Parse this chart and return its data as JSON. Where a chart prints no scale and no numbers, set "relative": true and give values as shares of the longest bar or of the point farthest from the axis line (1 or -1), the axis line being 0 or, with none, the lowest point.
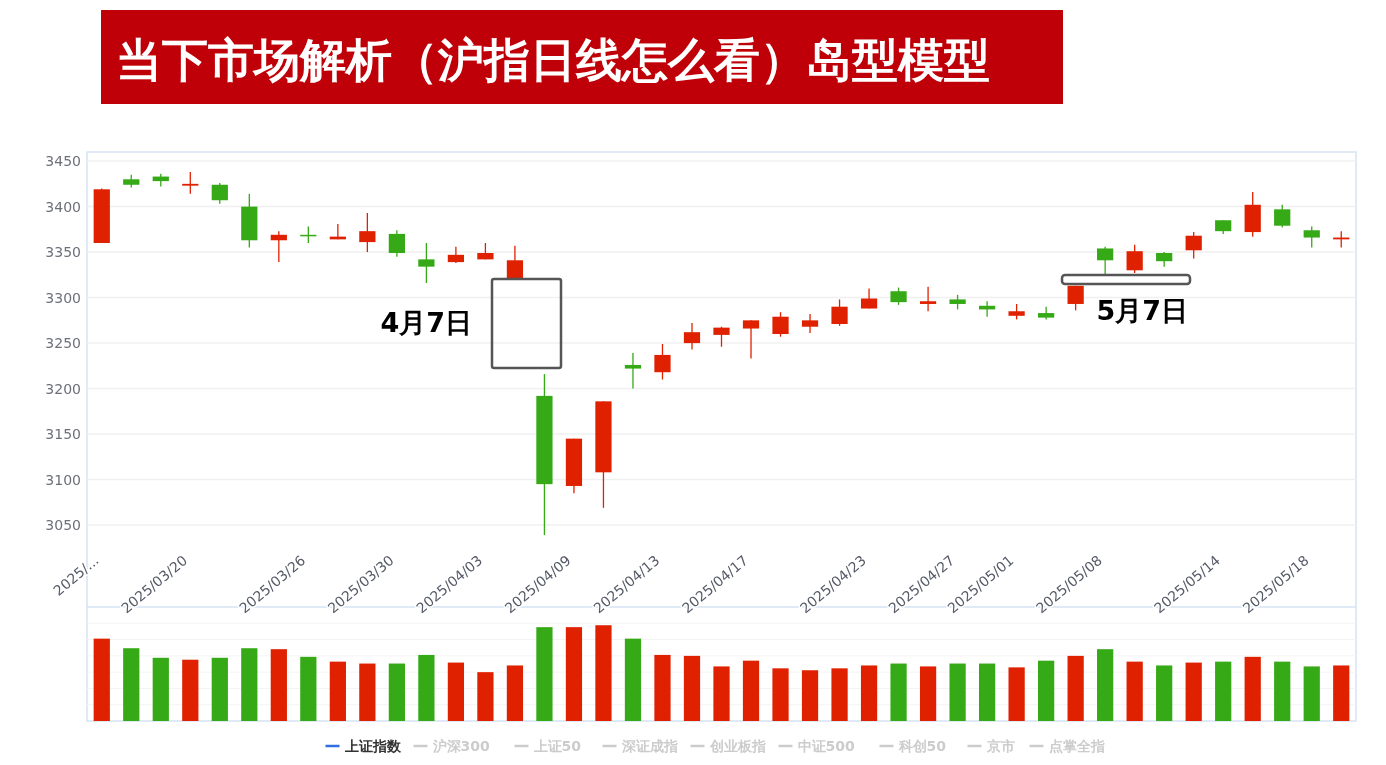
{
  "chart_data": [
    {
      "type": "candlestick",
      "title": "当下市场解析（沪指日线怎么看）岛型模型",
      "categories": [
        "2025/...",
        null,
        null,
        "2025/03/20",
        null,
        null,
        null,
        "2025/03/26",
        null,
        null,
        "2025/03/30",
        null,
        null,
        "2025/04/03",
        null,
        null,
        "2025/04/09",
        null,
        null,
        "2025/04/13",
        null,
        null,
        "2025/04/17",
        null,
        null,
        null,
        "2025/04/23",
        null,
        null,
        "2025/04/27",
        null,
        "2025/05/01",
        null,
        null,
        "2025/05/08",
        null,
        null,
        null,
        "2025/05/14",
        null,
        null,
        "2025/05/18",
        null
      ],
      "series": [
        {
          "name": "上证指数",
          "color": "#2f6fe0",
          "ohlc": [
            [
              3360,
              3420,
              3360,
              3419
            ],
            [
              3430,
              3435,
              3421,
              3424
            ],
            [
              3433,
              3436,
              3422,
              3428
            ],
            [
              3423,
              3438,
              3414,
              3425
            ],
            [
              3424,
              3426,
              3403,
              3407
            ],
            [
              3400,
              3414,
              3355,
              3363
            ],
            [
              3363,
              3373,
              3339,
              3369
            ],
            [
              3369,
              3378,
              3360,
              3368
            ],
            [
              3364,
              3381,
              3364,
              3367
            ],
            [
              3361,
              3393,
              3350,
              3373
            ],
            [
              3370,
              3374,
              3345,
              3349
            ],
            [
              3342,
              3360,
              3316,
              3334
            ],
            [
              3339,
              3356,
              3338,
              3347
            ],
            [
              3342,
              3360,
              3342,
              3349
            ],
            [
              3320,
              3357,
              3320,
              3341
            ],
            [
              3192,
              3216,
              3039,
              3095
            ],
            [
              3093,
              3145,
              3085,
              3145
            ],
            [
              3108,
              3186,
              3069,
              3186
            ],
            [
              3226,
              3239,
              3200,
              3222
            ],
            [
              3218,
              3249,
              3210,
              3237
            ],
            [
              3250,
              3272,
              3243,
              3262
            ],
            [
              3259,
              3268,
              3246,
              3267
            ],
            [
              3266,
              3275,
              3233,
              3275
            ],
            [
              3260,
              3284,
              3257,
              3279
            ],
            [
              3268,
              3282,
              3261,
              3275
            ],
            [
              3271,
              3298,
              3269,
              3290
            ],
            [
              3288,
              3310,
              3288,
              3299
            ],
            [
              3307,
              3311,
              3292,
              3295
            ],
            [
              3293,
              3312,
              3285,
              3296
            ],
            [
              3298,
              3303,
              3287,
              3293
            ],
            [
              3291,
              3296,
              3279,
              3287
            ],
            [
              3280,
              3293,
              3276,
              3285
            ],
            [
              3283,
              3290,
              3276,
              3278
            ],
            [
              3293,
              3313,
              3286,
              3313
            ],
            [
              3354,
              3356,
              3324,
              3341
            ],
            [
              3330,
              3358,
              3327,
              3351
            ],
            [
              3349,
              3350,
              3334,
              3340
            ],
            [
              3352,
              3372,
              3343,
              3368
            ],
            [
              3385,
              3385,
              3370,
              3373
            ],
            [
              3372,
              3416,
              3367,
              3402
            ],
            [
              3397,
              3402,
              3377,
              3379
            ],
            [
              3374,
              3378,
              3355,
              3366
            ],
            [
              3364,
              3373,
              3355,
              3366
            ]
          ],
          "colors": [
            "#e02100",
            "#35a916",
            "#35a916",
            "#e02100",
            "#35a916",
            "#35a916",
            "#e02100",
            "#35a916",
            "#e02100",
            "#e02100",
            "#35a916",
            "#35a916",
            "#e02100",
            "#e02100",
            "#e02100",
            "#35a916",
            "#e02100",
            "#e02100",
            "#35a916",
            "#e02100",
            "#e02100",
            "#e02100",
            "#e02100",
            "#e02100",
            "#e02100",
            "#e02100",
            "#e02100",
            "#35a916",
            "#e02100",
            "#35a916",
            "#35a916",
            "#e02100",
            "#35a916",
            "#e02100",
            "#35a916",
            "#e02100",
            "#35a916",
            "#e02100",
            "#35a916",
            "#e02100",
            "#35a916",
            "#35a916",
            "#e02100"
          ]
        }
      ],
      "ylim": [
        2960,
        3460
      ],
      "yticks": [
        3050,
        3100,
        3150,
        3200,
        3250,
        3300,
        3350,
        3400,
        3450
      ],
      "grid": "y",
      "legend": "bottom",
      "annotations": [
        "4月7日",
        "5月7日",
        "沪深300",
        "上证50",
        "深证成指",
        "创业板指",
        "中证500",
        "科创50",
        "京市",
        "点掌全指"
      ]
    },
    {
      "type": "bar",
      "relative": true,
      "categories": [
        null,
        null,
        null,
        null,
        null,
        null,
        null,
        null,
        null,
        null,
        null,
        null,
        null,
        null,
        null,
        null,
        null,
        null,
        null,
        null,
        null,
        null,
        null,
        null,
        null,
        null,
        null,
        null,
        null,
        null,
        null,
        null,
        null,
        null,
        null,
        null,
        null,
        null,
        null,
        null,
        null,
        null,
        null
      ],
      "values": [
        0.86,
        0.76,
        0.66,
        0.64,
        0.66,
        0.76,
        0.75,
        0.67,
        0.62,
        0.6,
        0.6,
        0.69,
        0.61,
        0.51,
        0.58,
        0.98,
        0.98,
        1,
        0.86,
        0.69,
        0.68,
        0.57,
        0.63,
        0.55,
        0.53,
        0.55,
        0.58,
        0.6,
        0.57,
        0.6,
        0.6,
        0.56,
        0.63,
        0.68,
        0.75,
        0.62,
        0.58,
        0.61,
        0.62,
        0.67,
        0.62,
        0.57,
        0.58
      ],
      "colors": [
        "#e02100",
        "#35a916",
        "#35a916",
        "#e02100",
        "#35a916",
        "#35a916",
        "#e02100",
        "#35a916",
        "#e02100",
        "#e02100",
        "#35a916",
        "#35a916",
        "#e02100",
        "#e02100",
        "#e02100",
        "#35a916",
        "#e02100",
        "#e02100",
        "#35a916",
        "#e02100",
        "#e02100",
        "#e02100",
        "#e02100",
        "#e02100",
        "#e02100",
        "#e02100",
        "#e02100",
        "#35a916",
        "#e02100",
        "#35a916",
        "#35a916",
        "#e02100",
        "#35a916",
        "#e02100",
        "#35a916",
        "#e02100",
        "#35a916",
        "#e02100",
        "#35a916",
        "#e02100",
        "#35a916",
        "#35a916",
        "#e02100"
      ]
    }
  ]
}
